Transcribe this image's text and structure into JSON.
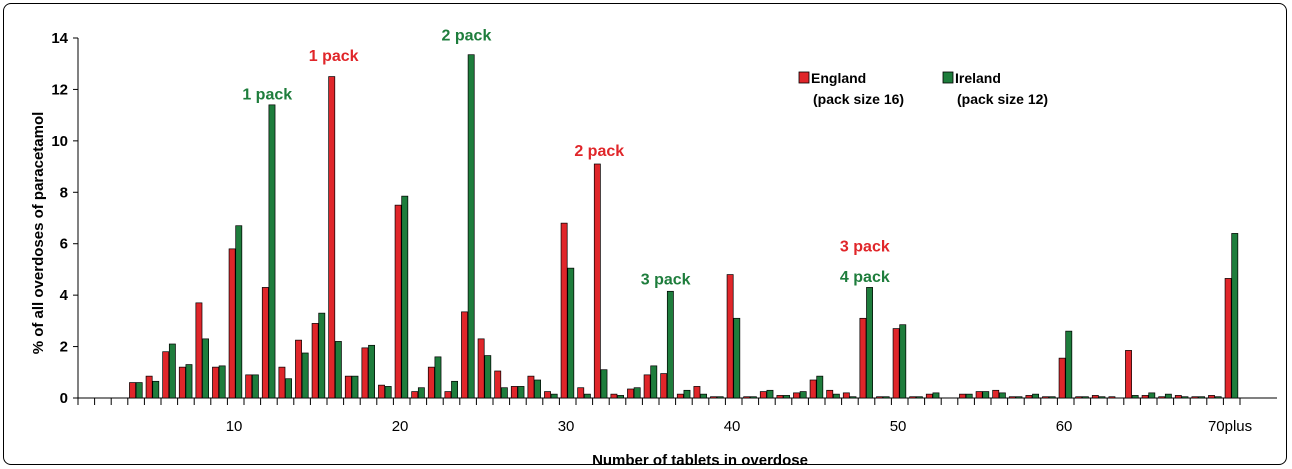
{
  "chart_data": {
    "type": "bar",
    "xlabel": "Number of  tablets in overdose",
    "ylabel": "% of all overdoses of paracetamol",
    "ylim": [
      0,
      14
    ],
    "y_ticks": [
      "0",
      "2",
      "4",
      "6",
      "8",
      "10",
      "12",
      "14"
    ],
    "x_tick_labels": [
      {
        "at": 10,
        "label": "10"
      },
      {
        "at": 20,
        "label": "20"
      },
      {
        "at": 30,
        "label": "30"
      },
      {
        "at": 40,
        "label": "40"
      },
      {
        "at": 50,
        "label": "50"
      },
      {
        "at": 60,
        "label": "60"
      },
      {
        "at": 70,
        "label": "70plus"
      }
    ],
    "categories": [
      1,
      2,
      3,
      4,
      5,
      6,
      7,
      8,
      9,
      10,
      11,
      12,
      13,
      14,
      15,
      16,
      17,
      18,
      19,
      20,
      21,
      22,
      23,
      24,
      25,
      26,
      27,
      28,
      29,
      30,
      31,
      32,
      33,
      34,
      35,
      36,
      37,
      38,
      39,
      40,
      41,
      42,
      43,
      44,
      45,
      46,
      47,
      48,
      49,
      50,
      51,
      52,
      53,
      54,
      55,
      56,
      57,
      58,
      59,
      60,
      61,
      62,
      63,
      64,
      65,
      66,
      67,
      68,
      69,
      70
    ],
    "series": [
      {
        "name": "England",
        "color": "#e0262a",
        "values": [
          0,
          0,
          0,
          0.6,
          0.85,
          1.8,
          1.2,
          3.7,
          1.2,
          5.8,
          0.9,
          4.3,
          1.2,
          2.25,
          2.9,
          12.5,
          0.85,
          1.95,
          0.5,
          7.5,
          0.25,
          1.2,
          0.25,
          3.35,
          2.3,
          1.05,
          0.45,
          0.85,
          0.25,
          6.8,
          0.4,
          9.1,
          0.15,
          0.35,
          0.9,
          0.95,
          0.15,
          0.45,
          0.05,
          4.8,
          0.05,
          0.25,
          0.1,
          0.2,
          0.7,
          0.3,
          0.2,
          3.1,
          0.05,
          2.7,
          0.05,
          0.15,
          0,
          0.15,
          0.25,
          0.3,
          0.05,
          0.1,
          0.05,
          1.55,
          0.05,
          0.1,
          0.05,
          1.85,
          0.1,
          0.05,
          0.1,
          0.05,
          0.1,
          4.65
        ]
      },
      {
        "name": "Ireland",
        "color": "#1e7d3c",
        "values": [
          0,
          0,
          0,
          0.6,
          0.65,
          2.1,
          1.3,
          2.3,
          1.25,
          6.7,
          0.9,
          11.4,
          0.75,
          1.75,
          3.3,
          2.2,
          0.85,
          2.05,
          0.45,
          7.85,
          0.4,
          1.6,
          0.65,
          13.35,
          1.65,
          0.4,
          0.45,
          0.7,
          0.15,
          5.05,
          0.15,
          1.1,
          0.1,
          0.4,
          1.25,
          4.15,
          0.3,
          0.15,
          0.05,
          3.1,
          0.05,
          0.3,
          0.1,
          0.25,
          0.85,
          0.15,
          0.05,
          4.3,
          0.05,
          2.85,
          0.05,
          0.2,
          0,
          0.15,
          0.25,
          0.2,
          0.05,
          0.15,
          0.05,
          2.6,
          0.05,
          0.05,
          0,
          0.1,
          0.2,
          0.15,
          0.05,
          0.05,
          0.05,
          6.4
        ]
      }
    ],
    "legend": {
      "placement": "top-right",
      "items": [
        {
          "label": "England",
          "sub": "(pack size 16)",
          "color": "#e0262a"
        },
        {
          "label": "Ireland",
          "sub": "(pack size 12)",
          "color": "#1e7d3c"
        }
      ]
    },
    "annotations": [
      {
        "text": "1 pack",
        "x": 16,
        "y": 13.3,
        "color": "#e0262a"
      },
      {
        "text": "1 pack",
        "x": 12,
        "y": 11.8,
        "color": "#1e7d3c"
      },
      {
        "text": "2 pack",
        "x": 24,
        "y": 14.1,
        "color": "#1e7d3c"
      },
      {
        "text": "2 pack",
        "x": 32,
        "y": 9.6,
        "color": "#e0262a"
      },
      {
        "text": "3 pack",
        "x": 36,
        "y": 4.6,
        "color": "#1e7d3c"
      },
      {
        "text": "3 pack",
        "x": 48,
        "y": 5.9,
        "color": "#e0262a"
      },
      {
        "text": "4 pack",
        "x": 48,
        "y": 4.7,
        "color": "#1e7d3c"
      }
    ]
  }
}
